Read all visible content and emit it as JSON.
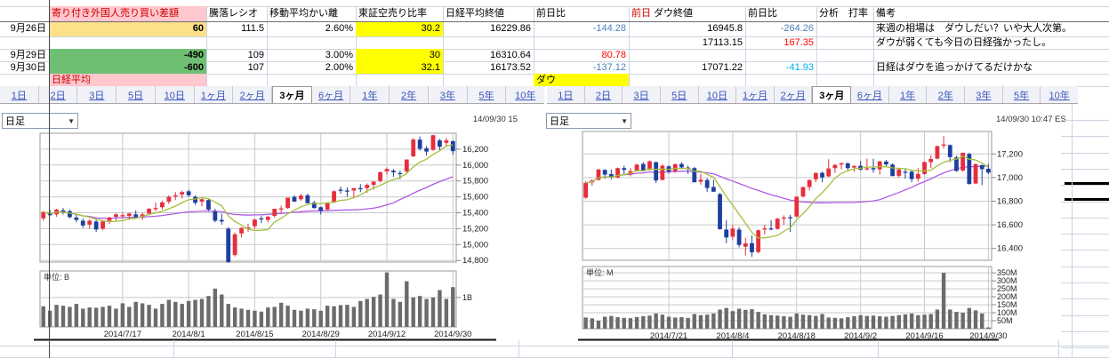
{
  "table": {
    "headers": {
      "diff": "寄り付き外国人売り買い差額",
      "ratio": "騰落レシオ",
      "kairi": "移動平均かい離",
      "short_ratio": "東証空売り比率",
      "nikkei_close": "日経平均終値",
      "nikkei_chg": "前日比",
      "dow_prefix": "前日",
      "dow_close": "ダウ終値",
      "dow_chg": "前日比",
      "analysis": "分析　打率",
      "remarks": "備考"
    },
    "rows": [
      {
        "date": "9月26日",
        "diff": "60",
        "diff_bg": "yellow_soft",
        "ratio": "111.5",
        "kairi": "2.60%",
        "short_ratio": "30.2",
        "nikkei_close": "16229.86",
        "nikkei_chg": "-144.28",
        "nikkei_chg_color": "blue",
        "dow_close": "16945.8",
        "dow_chg": "-264.26",
        "dow_chg_color": "blue",
        "note": "来週の相場は　ダウしだい？いや大人次第。"
      },
      {
        "date": "",
        "diff": "",
        "ratio": "",
        "kairi": "",
        "short_ratio": "",
        "nikkei_close": "",
        "nikkei_chg": "",
        "dow_close": "17113.15",
        "dow_chg": "167.35",
        "dow_chg_color": "red",
        "note": "ダウが弱くても今日の日経強かったし。"
      },
      {
        "date": "9月29日",
        "diff": "-490",
        "diff_bg": "green",
        "ratio": "109",
        "kairi": "3.00%",
        "short_ratio": "30",
        "nikkei_close": "16310.64",
        "nikkei_chg": "80.78",
        "nikkei_chg_color": "red",
        "dow_close": "",
        "dow_chg": "",
        "note": ""
      },
      {
        "date": "9月30日",
        "diff": "-600",
        "diff_bg": "green",
        "ratio": "107",
        "kairi": "2.00%",
        "short_ratio": "32.1",
        "nikkei_close": "16173.52",
        "nikkei_chg": "-137.12",
        "nikkei_chg_color": "blue",
        "dow_close": "17071.22",
        "dow_chg": "-41.93",
        "dow_chg_color": "cyan",
        "note": "日経はダウを追っかけてるだけかな"
      }
    ],
    "label_nikkei": "日経平均",
    "label_dow": "ダウ"
  },
  "tabs": [
    "1日",
    "2日",
    "3日",
    "5日",
    "10日",
    "1ヶ月",
    "2ヶ月",
    "3ヶ月",
    "6ヶ月",
    "1年",
    "2年",
    "3年",
    "5年",
    "10年"
  ],
  "selected_tab": "3ヶ月",
  "charts": {
    "left": {
      "dropdown_value": "日足",
      "timestamp": "14/09/30 15"
    },
    "right": {
      "dropdown_value": "日足",
      "timestamp": "14/09/30 10:47 ES"
    }
  },
  "colors": {
    "neg_blue": "#4f81bd",
    "pos_red": "#ff0000",
    "neg_cyan": "#00b0f0",
    "cell_yellow_soft": "#fde088",
    "cell_yellow": "#ffff00",
    "cell_green": "#6fbf73",
    "cell_pink": "#ffc7ce",
    "header_red": "#cc0000",
    "tab_blue": "#3a55bb",
    "candle_up": "#e62e3c",
    "candle_down": "#1f3fa0",
    "ma_short": "#a3c13c",
    "ma_long": "#b15ce6",
    "volume_bar": "#6b6b6b",
    "pane_border": "#9a9a9a",
    "pane_grid": "#c9c9c9"
  },
  "chart_data": [
    {
      "type": "candlestick",
      "label": "日経平均",
      "interval": "日足",
      "x_tick_labels": [
        "2014/7/17",
        "2014/8/1",
        "2014/8/15",
        "2014/8/29",
        "2014/9/12",
        "2014/9/30"
      ],
      "x_tick_indices": [
        12,
        22,
        32,
        42,
        52,
        62
      ],
      "price_ticks": [
        16200,
        16000,
        15800,
        15600,
        15400,
        15200,
        15000,
        14800
      ],
      "price_range": [
        14780,
        16400
      ],
      "volume_unit": "単位: B",
      "volume_ticks": [
        {
          "value": 1,
          "label": "1B"
        }
      ],
      "volume_max": 1.9,
      "ma_short_window": 7,
      "ma_long_window": 26,
      "candles": [
        [
          15330,
          15420,
          15300,
          15410
        ],
        [
          15400,
          15440,
          15360,
          15370
        ],
        [
          15380,
          15450,
          15350,
          15440
        ],
        [
          15430,
          15460,
          15380,
          15410
        ],
        [
          15420,
          15440,
          15330,
          15345
        ],
        [
          15340,
          15390,
          15280,
          15310
        ],
        [
          15300,
          15330,
          15210,
          15240
        ],
        [
          15250,
          15320,
          15200,
          15300
        ],
        [
          15290,
          15310,
          15160,
          15190
        ],
        [
          15200,
          15300,
          15180,
          15290
        ],
        [
          15300,
          15350,
          15260,
          15340
        ],
        [
          15350,
          15395,
          15300,
          15380
        ],
        [
          15370,
          15400,
          15330,
          15370
        ],
        [
          15360,
          15400,
          15310,
          15390
        ],
        [
          15380,
          15430,
          15340,
          15345
        ],
        [
          15350,
          15400,
          15310,
          15380
        ],
        [
          15390,
          15460,
          15370,
          15450
        ],
        [
          15460,
          15530,
          15420,
          15460
        ],
        [
          15470,
          15550,
          15440,
          15530
        ],
        [
          15540,
          15620,
          15510,
          15600
        ],
        [
          15610,
          15660,
          15560,
          15620
        ],
        [
          15630,
          15680,
          15580,
          15660
        ],
        [
          15670,
          15690,
          15600,
          15620
        ],
        [
          15600,
          15620,
          15500,
          15525
        ],
        [
          15540,
          15580,
          15480,
          15570
        ],
        [
          15560,
          15580,
          15420,
          15440
        ],
        [
          15420,
          15450,
          15280,
          15300
        ],
        [
          15310,
          15390,
          15250,
          15290
        ],
        [
          15200,
          15220,
          14770,
          14780
        ],
        [
          14870,
          15150,
          14850,
          15130
        ],
        [
          15140,
          15220,
          15090,
          15210
        ],
        [
          15210,
          15260,
          15160,
          15215
        ],
        [
          15230,
          15320,
          15200,
          15315
        ],
        [
          15330,
          15360,
          15270,
          15320
        ],
        [
          15310,
          15360,
          15280,
          15350
        ],
        [
          15360,
          15450,
          15340,
          15450
        ],
        [
          15450,
          15490,
          15400,
          15455
        ],
        [
          15460,
          15590,
          15450,
          15590
        ],
        [
          15600,
          15620,
          15540,
          15540
        ],
        [
          15570,
          15640,
          15550,
          15615
        ],
        [
          15620,
          15640,
          15520,
          15520
        ],
        [
          15530,
          15550,
          15450,
          15460
        ],
        [
          15470,
          15480,
          15380,
          15425
        ],
        [
          15440,
          15530,
          15430,
          15520
        ],
        [
          15530,
          15680,
          15520,
          15670
        ],
        [
          15690,
          15730,
          15640,
          15675
        ],
        [
          15680,
          15720,
          15600,
          15675
        ],
        [
          15680,
          15710,
          15590,
          15710
        ],
        [
          15710,
          15760,
          15660,
          15705
        ],
        [
          15710,
          15770,
          15650,
          15750
        ],
        [
          15750,
          15800,
          15690,
          15790
        ],
        [
          15800,
          15920,
          15780,
          15910
        ],
        [
          15920,
          15970,
          15880,
          15950
        ],
        [
          15930,
          15950,
          15850,
          15910
        ],
        [
          15900,
          15930,
          15820,
          15890
        ],
        [
          15920,
          16070,
          15900,
          16070
        ],
        [
          16110,
          16340,
          16100,
          16320
        ],
        [
          16320,
          16360,
          16180,
          16205
        ],
        [
          16210,
          16240,
          16120,
          16170
        ],
        [
          16190,
          16380,
          16180,
          16375
        ],
        [
          16310,
          16330,
          16190,
          16230
        ],
        [
          16280,
          16340,
          16240,
          16310
        ],
        [
          16300,
          16310,
          16130,
          16175
        ]
      ],
      "volumes": [
        0.7,
        0.55,
        0.75,
        0.72,
        0.68,
        0.78,
        0.62,
        0.66,
        0.65,
        0.68,
        0.72,
        0.62,
        0.8,
        0.68,
        0.85,
        0.8,
        0.75,
        0.62,
        0.78,
        0.92,
        0.85,
        0.78,
        0.88,
        0.92,
        0.95,
        1.05,
        1.3,
        1.1,
        0.78,
        0.66,
        0.62,
        0.58,
        0.55,
        0.52,
        0.66,
        0.68,
        0.82,
        0.72,
        0.58,
        0.55,
        0.62,
        0.6,
        0.55,
        0.72,
        0.7,
        0.74,
        0.75,
        0.68,
        0.88,
        0.95,
        1.02,
        1.1,
        1.85,
        0.95,
        0.85,
        1.55,
        1.0,
        1.05,
        0.95,
        1.0,
        1.25,
        0.95,
        1.35
      ]
    },
    {
      "type": "candlestick",
      "label": "ダウ",
      "interval": "日足",
      "x_tick_labels": [
        "2014/7/21",
        "2014/8/4",
        "2014/8/18",
        "2014/9/2",
        "2014/9/16",
        "2014/9/30"
      ],
      "x_tick_indices": [
        13,
        23,
        33,
        43,
        53,
        63
      ],
      "price_ticks": [
        17200,
        17000,
        16800,
        16600,
        16400
      ],
      "price_range": [
        16300,
        17390
      ],
      "volume_unit": "単位: M",
      "volume_ticks": [
        {
          "value": 350,
          "label": "350M"
        },
        {
          "value": 300,
          "label": "300M"
        },
        {
          "value": 250,
          "label": "250M"
        },
        {
          "value": 200,
          "label": "200M"
        },
        {
          "value": 150,
          "label": "150M"
        },
        {
          "value": 100,
          "label": "100M"
        },
        {
          "value": 50,
          "label": "50M"
        }
      ],
      "volume_max": 390,
      "ma_short_window": 7,
      "ma_long_window": 26,
      "candles": [
        [
          16830,
          16970,
          16820,
          16955
        ],
        [
          16960,
          16985,
          16930,
          16975
        ],
        [
          16980,
          17075,
          16975,
          17068
        ],
        [
          17065,
          17070,
          16990,
          17025
        ],
        [
          17030,
          17070,
          16985,
          17000
        ],
        [
          17000,
          17085,
          16995,
          17080
        ],
        [
          17080,
          17100,
          17030,
          17065
        ],
        [
          17030,
          17080,
          17010,
          17055
        ],
        [
          17060,
          17115,
          17050,
          17110
        ],
        [
          17115,
          17130,
          17055,
          17060
        ],
        [
          17065,
          17145,
          17060,
          17138
        ],
        [
          17130,
          17135,
          16955,
          16976
        ],
        [
          16980,
          17115,
          16975,
          17100
        ],
        [
          17095,
          17105,
          17035,
          17051
        ],
        [
          17055,
          17120,
          17040,
          17113
        ],
        [
          17115,
          17130,
          17075,
          17086
        ],
        [
          17085,
          17100,
          17030,
          17084
        ],
        [
          17080,
          17090,
          16990,
          16960
        ],
        [
          16965,
          17030,
          16940,
          16982
        ],
        [
          16980,
          16995,
          16880,
          16912
        ],
        [
          16920,
          16980,
          16890,
          16880
        ],
        [
          16860,
          16870,
          16560,
          16563
        ],
        [
          16560,
          16640,
          16445,
          16493
        ],
        [
          16500,
          16600,
          16470,
          16569
        ],
        [
          16560,
          16580,
          16410,
          16430
        ],
        [
          16415,
          16490,
          16340,
          16443
        ],
        [
          16445,
          16510,
          16330,
          16368
        ],
        [
          16370,
          16560,
          16360,
          16554
        ],
        [
          16560,
          16600,
          16520,
          16570
        ],
        [
          16570,
          16640,
          16555,
          16560
        ],
        [
          16565,
          16660,
          16560,
          16652
        ],
        [
          16655,
          16680,
          16600,
          16662
        ],
        [
          16665,
          16685,
          16540,
          16663
        ],
        [
          16670,
          16840,
          16665,
          16838
        ],
        [
          16840,
          16925,
          16830,
          16919
        ],
        [
          16920,
          16985,
          16890,
          16979
        ],
        [
          16985,
          17045,
          16960,
          17039
        ],
        [
          17040,
          17050,
          16960,
          17001
        ],
        [
          17010,
          17155,
          17005,
          17077
        ],
        [
          17080,
          17115,
          17040,
          17107
        ],
        [
          17110,
          17125,
          17070,
          17122
        ],
        [
          17120,
          17130,
          17060,
          17080
        ],
        [
          17085,
          17105,
          17050,
          17098
        ],
        [
          17100,
          17140,
          17060,
          17067
        ],
        [
          17070,
          17160,
          17060,
          17078
        ],
        [
          17080,
          17160,
          17040,
          17069
        ],
        [
          17070,
          17140,
          17025,
          17137
        ],
        [
          17135,
          17150,
          17090,
          17111
        ],
        [
          17110,
          17120,
          17010,
          17013
        ],
        [
          17015,
          17075,
          17000,
          17069
        ],
        [
          17050,
          17070,
          16990,
          17049
        ],
        [
          17050,
          17060,
          16960,
          16987
        ],
        [
          16990,
          17080,
          16965,
          17031
        ],
        [
          17030,
          17135,
          17025,
          17132
        ],
        [
          17130,
          17190,
          17080,
          17157
        ],
        [
          17160,
          17270,
          17155,
          17266
        ],
        [
          17270,
          17350,
          17245,
          17280
        ],
        [
          17275,
          17280,
          17130,
          17173
        ],
        [
          17170,
          17185,
          17050,
          17056
        ],
        [
          17060,
          17210,
          17050,
          17210
        ],
        [
          17200,
          17210,
          16940,
          16946
        ],
        [
          16950,
          17121,
          16945,
          17113
        ],
        [
          17105,
          17110,
          16935,
          17071
        ],
        [
          17075,
          17115,
          17030,
          17042
        ]
      ],
      "volumes": [
        70,
        65,
        50,
        75,
        80,
        72,
        68,
        66,
        73,
        78,
        82,
        95,
        88,
        75,
        70,
        72,
        68,
        92,
        85,
        88,
        95,
        120,
        130,
        110,
        125,
        118,
        122,
        105,
        90,
        85,
        82,
        78,
        75,
        95,
        88,
        85,
        80,
        92,
        70,
        68,
        65,
        72,
        78,
        85,
        80,
        82,
        78,
        75,
        80,
        85,
        90,
        95,
        85,
        88,
        92,
        120,
        350,
        120,
        105,
        100,
        130,
        115,
        95,
        8
      ]
    }
  ]
}
